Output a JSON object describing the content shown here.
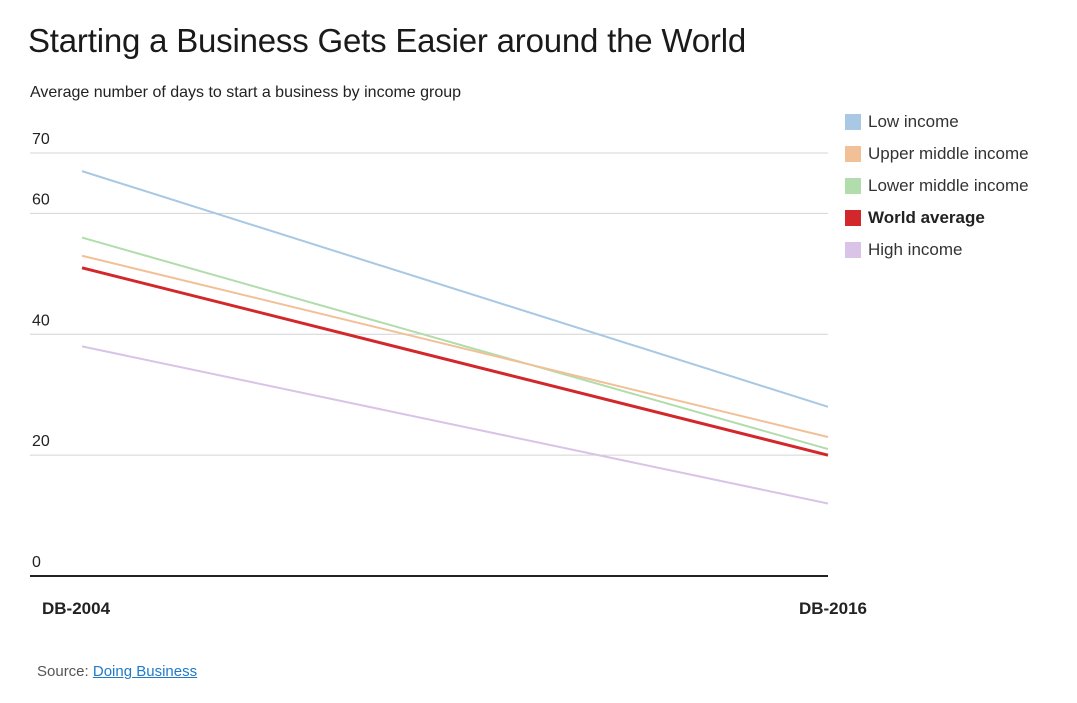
{
  "title": "Starting a Business Gets Easier around the World",
  "subtitle": "Average number of days to start a business by income group",
  "source": {
    "label": "Source:",
    "link_text": "Doing Business"
  },
  "chart_data": {
    "type": "line",
    "x": [
      "DB-2004",
      "DB-2016"
    ],
    "ylim": [
      0,
      70
    ],
    "yticks": [
      0,
      20,
      40,
      60,
      70
    ],
    "grid": true,
    "legend_position": "top-right",
    "series": [
      {
        "name": "Low income",
        "color": "#a9c8e4",
        "values": [
          67,
          28
        ],
        "bold": false
      },
      {
        "name": "Upper middle income",
        "color": "#f2c096",
        "values": [
          53,
          23
        ],
        "bold": false
      },
      {
        "name": "Lower middle income",
        "color": "#b1dcab",
        "values": [
          56,
          21
        ],
        "bold": false
      },
      {
        "name": "World average",
        "color": "#d3282b",
        "values": [
          51,
          20
        ],
        "bold": true
      },
      {
        "name": "High income",
        "color": "#d9c3e6",
        "values": [
          38,
          12
        ],
        "bold": false
      }
    ],
    "draw_order": [
      0,
      2,
      1,
      4,
      3
    ]
  }
}
